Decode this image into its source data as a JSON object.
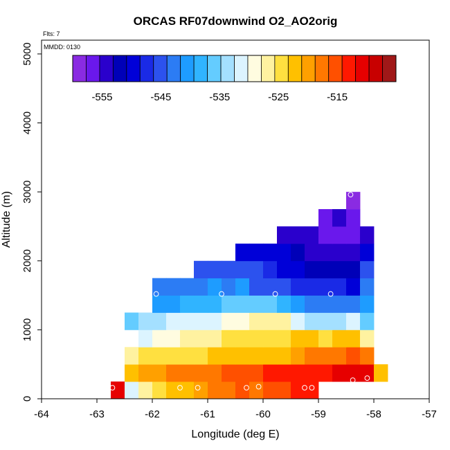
{
  "chart_data": {
    "type": "heatmap",
    "title": "ORCAS RF07downwind O2_AO2orig",
    "annotations": {
      "flights": "Flts: 7",
      "date": "MMDD: 0130"
    },
    "xlabel": "Longitude (deg E)",
    "ylabel": "Altitude (m)",
    "xlim": [
      -64,
      -57
    ],
    "ylim": [
      0,
      5200
    ],
    "xticks": [
      -64,
      -63,
      -62,
      -61,
      -60,
      -59,
      -58,
      -57
    ],
    "yticks": [
      0,
      1000,
      2000,
      3000,
      4000,
      5000
    ],
    "colorbar": {
      "range": [
        -560,
        -505
      ],
      "step": 2.5,
      "tick_values": [
        -555,
        -545,
        -535,
        -525,
        -515
      ],
      "tick_labels": [
        "-555",
        "-545",
        "-535",
        "-525",
        "-515"
      ],
      "colors": [
        "#8a2be2",
        "#6a18ec",
        "#2a00cc",
        "#0000b8",
        "#0000d8",
        "#1a2ae6",
        "#2c52ee",
        "#2c7cf4",
        "#1e9cff",
        "#30b4ff",
        "#64ccff",
        "#a4e0ff",
        "#dcf4ff",
        "#fffce0",
        "#fff2a0",
        "#ffe040",
        "#ffc000",
        "#ffa000",
        "#ff7800",
        "#ff5000",
        "#ff1800",
        "#e60000",
        "#c80000",
        "#a01818"
      ]
    },
    "cell_width_deg": 0.25,
    "cell_height_m": 250,
    "cells": [
      {
        "alt": 0,
        "row": [
          [
            -62.75,
            -507
          ],
          [
            -62.5,
            -528
          ],
          [
            -62.25,
            -525
          ],
          [
            -62.0,
            -522
          ],
          [
            -61.75,
            -520
          ],
          [
            -61.5,
            -518
          ],
          [
            -61.25,
            -516
          ],
          [
            -61.0,
            -515
          ],
          [
            -60.75,
            -514
          ],
          [
            -60.5,
            -512
          ],
          [
            -60.25,
            -513
          ],
          [
            -60.0,
            -511
          ],
          [
            -59.75,
            -511
          ],
          [
            -59.5,
            -510
          ],
          [
            -59.25,
            -509
          ]
        ]
      },
      {
        "alt": 250,
        "row": [
          [
            -62.5,
            -518
          ],
          [
            -62.25,
            -517
          ],
          [
            -62.0,
            -516
          ],
          [
            -61.75,
            -515
          ],
          [
            -61.5,
            -514
          ],
          [
            -61.25,
            -514
          ],
          [
            -61.0,
            -513
          ],
          [
            -60.75,
            -512
          ],
          [
            -60.5,
            -512
          ],
          [
            -60.25,
            -511
          ],
          [
            -60.0,
            -510
          ],
          [
            -59.75,
            -509
          ],
          [
            -59.5,
            -508
          ],
          [
            -59.25,
            -509
          ],
          [
            -59.0,
            -510
          ],
          [
            -58.75,
            -507
          ],
          [
            -58.5,
            -507
          ],
          [
            -58.25,
            -507
          ],
          [
            -58.0,
            -518
          ]
        ]
      },
      {
        "alt": 500,
        "row": [
          [
            -62.5,
            -523
          ],
          [
            -62.25,
            -522
          ],
          [
            -62.0,
            -522
          ],
          [
            -61.75,
            -521
          ],
          [
            -61.5,
            -521
          ],
          [
            -61.25,
            -521
          ],
          [
            -61.0,
            -520
          ],
          [
            -60.75,
            -519
          ],
          [
            -60.5,
            -519
          ],
          [
            -60.25,
            -519
          ],
          [
            -60.0,
            -518
          ],
          [
            -59.75,
            -518
          ],
          [
            -59.5,
            -516
          ],
          [
            -59.25,
            -515
          ],
          [
            -59.0,
            -514
          ],
          [
            -58.75,
            -513
          ],
          [
            -58.5,
            -511
          ],
          [
            -58.25,
            -513
          ]
        ]
      },
      {
        "alt": 750,
        "row": [
          [
            -62.25,
            -528
          ],
          [
            -62.0,
            -527
          ],
          [
            -61.75,
            -526
          ],
          [
            -61.5,
            -525
          ],
          [
            -61.25,
            -524
          ],
          [
            -61.0,
            -523
          ],
          [
            -60.75,
            -522
          ],
          [
            -60.5,
            -521
          ],
          [
            -60.25,
            -521
          ],
          [
            -60.0,
            -521
          ],
          [
            -59.75,
            -521
          ],
          [
            -59.5,
            -519
          ],
          [
            -59.25,
            -518
          ],
          [
            -59.0,
            -521
          ],
          [
            -58.75,
            -520
          ],
          [
            -58.5,
            -518
          ],
          [
            -58.25,
            -524
          ]
        ]
      },
      {
        "alt": 1000,
        "row": [
          [
            -62.5,
            -534
          ],
          [
            -62.25,
            -532
          ],
          [
            -62.0,
            -531
          ],
          [
            -61.75,
            -530
          ],
          [
            -61.5,
            -530
          ],
          [
            -61.25,
            -529
          ],
          [
            -61.0,
            -528
          ],
          [
            -60.75,
            -527
          ],
          [
            -60.5,
            -526
          ],
          [
            -60.25,
            -525
          ],
          [
            -60.0,
            -525
          ],
          [
            -59.75,
            -524
          ],
          [
            -59.5,
            -528
          ],
          [
            -59.25,
            -531
          ],
          [
            -59.0,
            -531
          ],
          [
            -58.75,
            -531
          ],
          [
            -58.5,
            -530
          ],
          [
            -58.25,
            -533
          ]
        ]
      },
      {
        "alt": 1250,
        "row": [
          [
            -62.0,
            -538
          ],
          [
            -61.75,
            -538
          ],
          [
            -61.5,
            -537
          ],
          [
            -61.25,
            -536
          ],
          [
            -61.0,
            -536
          ],
          [
            -60.75,
            -535
          ],
          [
            -60.5,
            -534
          ],
          [
            -60.25,
            -534
          ],
          [
            -60.0,
            -535
          ],
          [
            -59.75,
            -536
          ],
          [
            -59.5,
            -539
          ],
          [
            -59.25,
            -541
          ],
          [
            -59.0,
            -541
          ],
          [
            -58.75,
            -541
          ],
          [
            -58.5,
            -541
          ],
          [
            -58.25,
            -538
          ]
        ]
      },
      {
        "alt": 1500,
        "row": [
          [
            -62.0,
            -542
          ],
          [
            -61.75,
            -542
          ],
          [
            -61.5,
            -541
          ],
          [
            -61.25,
            -541
          ],
          [
            -61.0,
            -540
          ],
          [
            -60.75,
            -541
          ],
          [
            -60.5,
            -540
          ],
          [
            -60.25,
            -543
          ],
          [
            -60.0,
            -543
          ],
          [
            -59.75,
            -544
          ],
          [
            -59.5,
            -546
          ],
          [
            -59.25,
            -547
          ],
          [
            -59.0,
            -547
          ],
          [
            -58.75,
            -547
          ],
          [
            -58.5,
            -548
          ],
          [
            -58.25,
            -541
          ]
        ]
      },
      {
        "alt": 1750,
        "row": [
          [
            -61.25,
            -545
          ],
          [
            -61.0,
            -545
          ],
          [
            -60.75,
            -544
          ],
          [
            -60.5,
            -544
          ],
          [
            -60.25,
            -544
          ],
          [
            -60.0,
            -546
          ],
          [
            -59.75,
            -548
          ],
          [
            -59.5,
            -548
          ],
          [
            -59.25,
            -552
          ],
          [
            -59.0,
            -551
          ],
          [
            -58.75,
            -552
          ],
          [
            -58.5,
            -551
          ],
          [
            -58.25,
            -545
          ]
        ]
      },
      {
        "alt": 2000,
        "row": [
          [
            -60.5,
            -550
          ],
          [
            -60.25,
            -548
          ],
          [
            -60.0,
            -549
          ],
          [
            -59.75,
            -549
          ],
          [
            -59.5,
            -552
          ],
          [
            -59.25,
            -553
          ],
          [
            -59.0,
            -553
          ],
          [
            -58.75,
            -553
          ],
          [
            -58.5,
            -553
          ],
          [
            -58.25,
            -549
          ]
        ]
      },
      {
        "alt": 2250,
        "row": [
          [
            -59.75,
            -554
          ],
          [
            -59.5,
            -553
          ],
          [
            -59.25,
            -554
          ],
          [
            -59.0,
            -556
          ],
          [
            -58.75,
            -556
          ],
          [
            -58.5,
            -556
          ],
          [
            -58.25,
            -553
          ]
        ]
      },
      {
        "alt": 2500,
        "row": [
          [
            -59.0,
            -556
          ],
          [
            -58.75,
            -554
          ],
          [
            -58.5,
            -556
          ]
        ]
      },
      {
        "alt": 2750,
        "row": [
          [
            -58.5,
            -558
          ]
        ]
      }
    ],
    "observation_points": [
      [
        -62.72,
        160
      ],
      [
        -61.5,
        160
      ],
      [
        -61.18,
        160
      ],
      [
        -60.3,
        160
      ],
      [
        -60.08,
        175
      ],
      [
        -59.25,
        160
      ],
      [
        -59.12,
        160
      ],
      [
        -58.38,
        270
      ],
      [
        -58.12,
        300
      ],
      [
        -61.93,
        1520
      ],
      [
        -60.75,
        1520
      ],
      [
        -59.78,
        1520
      ],
      [
        -58.78,
        1520
      ],
      [
        -58.42,
        2960
      ]
    ]
  }
}
